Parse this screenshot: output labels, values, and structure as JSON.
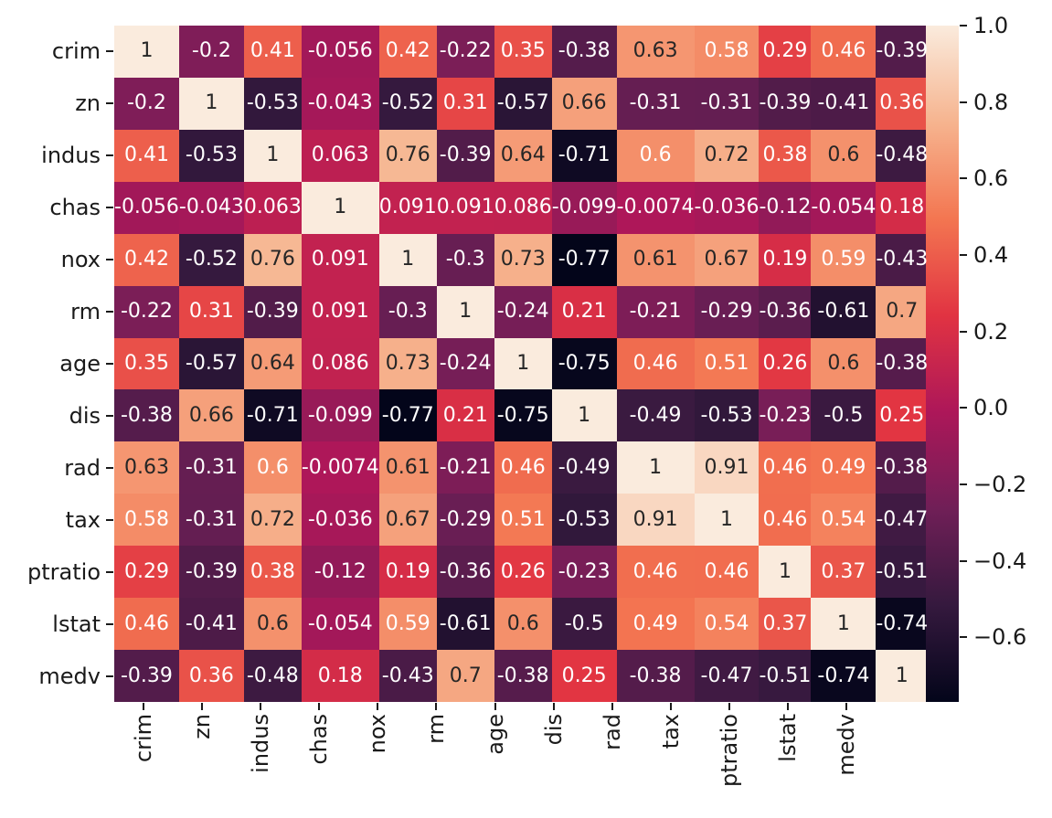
{
  "chart_data": {
    "type": "heatmap",
    "title": "",
    "xlabel": "",
    "ylabel": "",
    "grid": false,
    "legend_position": "right-colorbar",
    "categories": [
      "crim",
      "zn",
      "indus",
      "chas",
      "nox",
      "rm",
      "age",
      "dis",
      "rad",
      "tax",
      "ptratio",
      "lstat",
      "medv"
    ],
    "matrix": [
      [
        1.0,
        -0.2005,
        0.4066,
        -0.0559,
        0.421,
        -0.2192,
        0.3527,
        -0.3797,
        0.6255,
        0.5828,
        0.2899,
        0.4556,
        -0.3883
      ],
      [
        -0.2005,
        1.0,
        -0.5338,
        -0.0427,
        -0.5166,
        0.312,
        -0.5695,
        0.6644,
        -0.3119,
        -0.3146,
        -0.3917,
        -0.413,
        0.3604
      ],
      [
        0.4066,
        -0.5338,
        1.0,
        0.0629,
        0.7637,
        -0.3917,
        0.6448,
        -0.708,
        0.5951,
        0.7208,
        0.3832,
        0.6038,
        -0.4837
      ],
      [
        -0.0559,
        -0.0427,
        0.0629,
        1.0,
        0.0912,
        0.0913,
        0.0865,
        -0.0992,
        -0.0074,
        -0.0356,
        -0.1215,
        -0.0539,
        0.1753
      ],
      [
        0.421,
        -0.5166,
        0.7637,
        0.0912,
        1.0,
        -0.3022,
        0.7315,
        -0.7692,
        0.6114,
        0.668,
        0.1889,
        0.5909,
        -0.4273
      ],
      [
        -0.2192,
        0.312,
        -0.3917,
        0.0913,
        -0.3022,
        1.0,
        -0.2403,
        0.2052,
        -0.2098,
        -0.292,
        -0.3555,
        -0.6138,
        0.6954
      ],
      [
        0.3527,
        -0.5695,
        0.6448,
        0.0865,
        0.7315,
        -0.2403,
        1.0,
        -0.7479,
        0.456,
        0.5065,
        0.2615,
        0.6023,
        -0.377
      ],
      [
        -0.3797,
        0.6644,
        -0.708,
        -0.0992,
        -0.7692,
        0.2052,
        -0.7479,
        1.0,
        -0.4946,
        -0.5344,
        -0.2325,
        -0.497,
        0.2499
      ],
      [
        0.6255,
        -0.3119,
        0.5951,
        -0.0074,
        0.6114,
        -0.2098,
        0.456,
        -0.4946,
        1.0,
        0.9102,
        0.4647,
        0.4887,
        -0.3816
      ],
      [
        0.5828,
        -0.3146,
        0.7208,
        -0.0356,
        0.668,
        -0.292,
        0.5065,
        -0.5344,
        0.9102,
        1.0,
        0.4609,
        0.544,
        -0.4685
      ],
      [
        0.2899,
        -0.3917,
        0.3832,
        -0.1215,
        0.1889,
        -0.3555,
        0.2615,
        -0.2325,
        0.4647,
        0.4609,
        1.0,
        0.374,
        -0.5078
      ],
      [
        0.4556,
        -0.413,
        0.6038,
        -0.0539,
        0.5909,
        -0.6138,
        0.6023,
        -0.497,
        0.4887,
        0.544,
        0.374,
        1.0,
        -0.7377
      ],
      [
        -0.3883,
        0.3604,
        -0.4837,
        0.1753,
        -0.4273,
        0.6954,
        -0.377,
        0.2499,
        -0.3816,
        -0.4685,
        -0.5078,
        -0.7377,
        1.0
      ]
    ],
    "value_format": ".2g",
    "vmin": -0.7692,
    "vmax": 1.0,
    "colormap": {
      "name": "rocket",
      "stops": [
        {
          "t": 0.0,
          "color": "#03051A"
        },
        {
          "t": 0.1429,
          "color": "#35193E"
        },
        {
          "t": 0.2857,
          "color": "#701F57"
        },
        {
          "t": 0.4286,
          "color": "#AD1759"
        },
        {
          "t": 0.5714,
          "color": "#E13342"
        },
        {
          "t": 0.7143,
          "color": "#F37651"
        },
        {
          "t": 0.8571,
          "color": "#F6B48F"
        },
        {
          "t": 1.0,
          "color": "#FAEBDD"
        }
      ]
    },
    "annotation_colors": {
      "dark": "#262626",
      "light": "#ffffff",
      "luminance_threshold": 0.402
    },
    "axis_text_color": "#1a1a1a",
    "background": "#ffffff",
    "colorbar_ticks": [
      {
        "value": 1.0,
        "label": "1.0"
      },
      {
        "value": 0.8,
        "label": "0.8"
      },
      {
        "value": 0.6,
        "label": "0.6"
      },
      {
        "value": 0.4,
        "label": "0.4"
      },
      {
        "value": 0.2,
        "label": "0.2"
      },
      {
        "value": 0.0,
        "label": "0.0"
      },
      {
        "value": -0.2,
        "label": "−0.2"
      },
      {
        "value": -0.4,
        "label": "−0.4"
      },
      {
        "value": -0.6,
        "label": "−0.6"
      }
    ]
  }
}
